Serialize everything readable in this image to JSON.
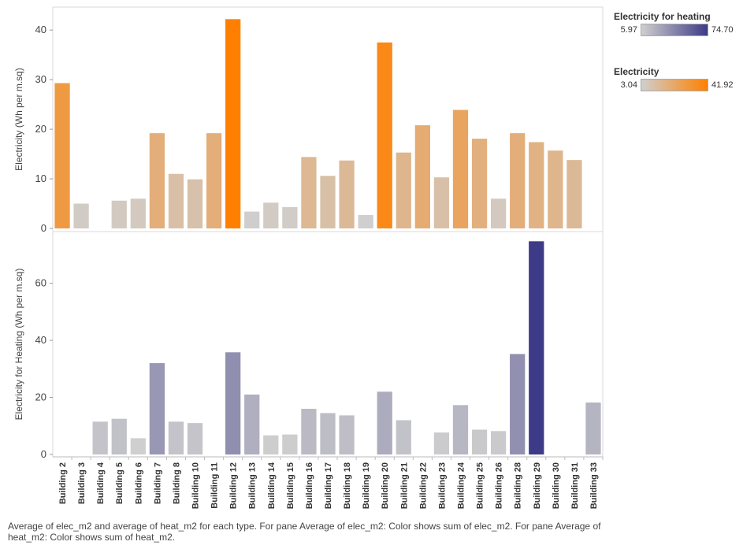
{
  "chart_data": {
    "type": "bar",
    "categories": [
      "Building 2",
      "Building 3",
      "Building 4",
      "Building 5",
      "Building 6",
      "Building 7",
      "Building 8",
      "Building 10",
      "Building 11",
      "Building 12",
      "Building 13",
      "Building 14",
      "Building 15",
      "Building 16",
      "Building 17",
      "Building 18",
      "Building 19",
      "Building 20",
      "Building 21",
      "Building 22",
      "Building 23",
      "Building 24",
      "Building 25",
      "Building 26",
      "Building 28",
      "Building 29",
      "Building 30",
      "Building 31",
      "Building 33"
    ],
    "panes": [
      {
        "ylabel": "Electricity (Wh per m.sq)",
        "ylim": [
          0,
          44
        ],
        "yticks": [
          0,
          10,
          20,
          30,
          40
        ],
        "values": [
          29.3,
          5.0,
          null,
          5.6,
          6.0,
          19.2,
          11.0,
          9.9,
          19.2,
          42.2,
          3.4,
          5.2,
          4.3,
          14.4,
          10.6,
          13.7,
          2.7,
          37.5,
          15.3,
          20.8,
          10.3,
          23.9,
          18.1,
          6.0,
          19.2,
          17.4,
          15.7,
          13.8,
          null
        ],
        "color_min": 3.04,
        "color_max": 41.92,
        "color_low": "#cfcfcf",
        "color_high": "#ff8000"
      },
      {
        "ylabel": "Electricity for Heating (Wh per m.sq)",
        "ylim": [
          0,
          77
        ],
        "yticks": [
          0,
          20,
          40,
          60
        ],
        "values": [
          null,
          null,
          11.5,
          12.5,
          5.7,
          32.0,
          11.5,
          11.0,
          null,
          35.8,
          21.0,
          6.7,
          7.0,
          16.0,
          14.5,
          13.7,
          null,
          22.0,
          12.0,
          null,
          7.7,
          17.3,
          8.7,
          8.2,
          35.2,
          74.7,
          null,
          null,
          18.2
        ],
        "color_min": 5.97,
        "color_max": 74.7,
        "color_low": "#cfcfcf",
        "color_high": "#3d3b87"
      }
    ],
    "grid": false
  },
  "legend": {
    "heating": {
      "title": "Electricity for heating",
      "min": "5.97",
      "max": "74.70"
    },
    "electricity": {
      "title": "Electricity",
      "min": "3.04",
      "max": "41.92"
    }
  },
  "caption": "Average of elec_m2 and average of heat_m2 for each type.  For pane Average of elec_m2:  Color shows sum of elec_m2.  For pane Average of heat_m2:  Color shows sum of heat_m2."
}
